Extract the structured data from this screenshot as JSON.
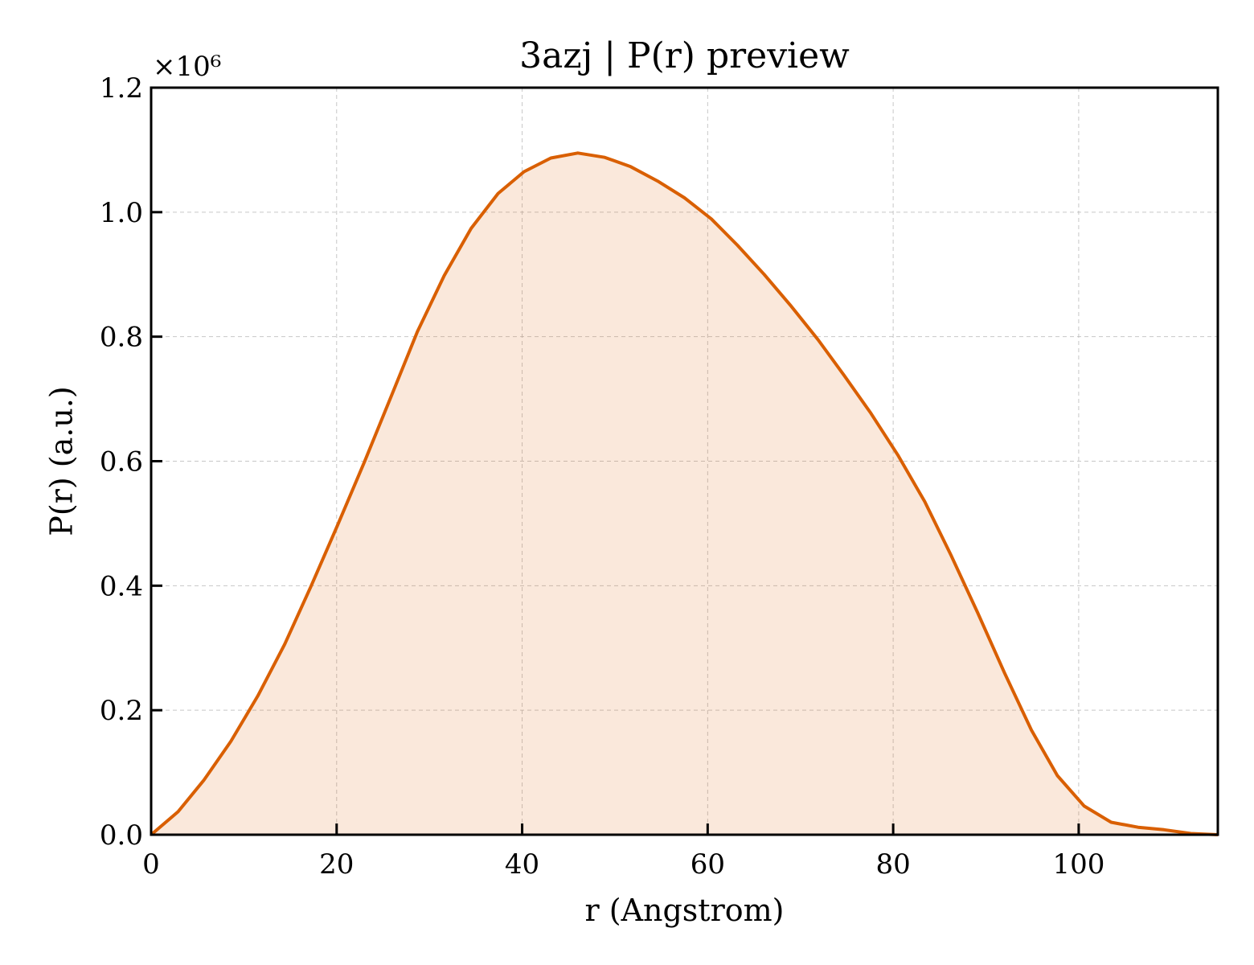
{
  "chart_data": {
    "type": "area",
    "title": "3azj | P(r) preview",
    "xlabel": "r (Angstrom)",
    "ylabel": "P(r) (a.u.)",
    "y_offset_label": "×10⁶",
    "xlim": [
      0,
      115
    ],
    "ylim": [
      0,
      1.2
    ],
    "y_scale_multiplier": 1000000,
    "xticks": [
      0,
      20,
      40,
      60,
      80,
      100
    ],
    "xtick_labels": [
      "0",
      "20",
      "40",
      "60",
      "80",
      "100"
    ],
    "yticks": [
      0.0,
      0.2,
      0.4,
      0.6,
      0.8,
      1.0,
      1.2
    ],
    "ytick_labels": [
      "0.0",
      "0.2",
      "0.4",
      "0.6",
      "0.8",
      "1.0",
      "1.2"
    ],
    "grid": true,
    "series": [
      {
        "color": "#d95f02",
        "fill_color": "#d95f02",
        "fill_opacity": 0.14,
        "x": [
          0,
          2.9,
          5.7,
          8.6,
          11.5,
          14.4,
          17.2,
          20.1,
          23.0,
          25.9,
          28.7,
          31.6,
          34.5,
          37.4,
          40.2,
          43.1,
          46.0,
          48.9,
          51.7,
          54.6,
          57.5,
          60.4,
          63.2,
          66.1,
          69.0,
          71.9,
          74.7,
          77.6,
          80.5,
          83.4,
          86.2,
          89.1,
          92.0,
          94.9,
          97.7,
          100.6,
          103.5,
          106.4,
          109.2,
          112.1,
          115.0
        ],
        "y": [
          0.0,
          0.037,
          0.088,
          0.15,
          0.223,
          0.306,
          0.398,
          0.497,
          0.599,
          0.705,
          0.808,
          0.898,
          0.974,
          1.03,
          1.065,
          1.087,
          1.095,
          1.088,
          1.073,
          1.05,
          1.023,
          0.989,
          0.947,
          0.9,
          0.849,
          0.795,
          0.738,
          0.677,
          0.61,
          0.535,
          0.45,
          0.357,
          0.26,
          0.168,
          0.095,
          0.046,
          0.02,
          0.012,
          0.008,
          0.002,
          0.0
        ]
      }
    ]
  }
}
